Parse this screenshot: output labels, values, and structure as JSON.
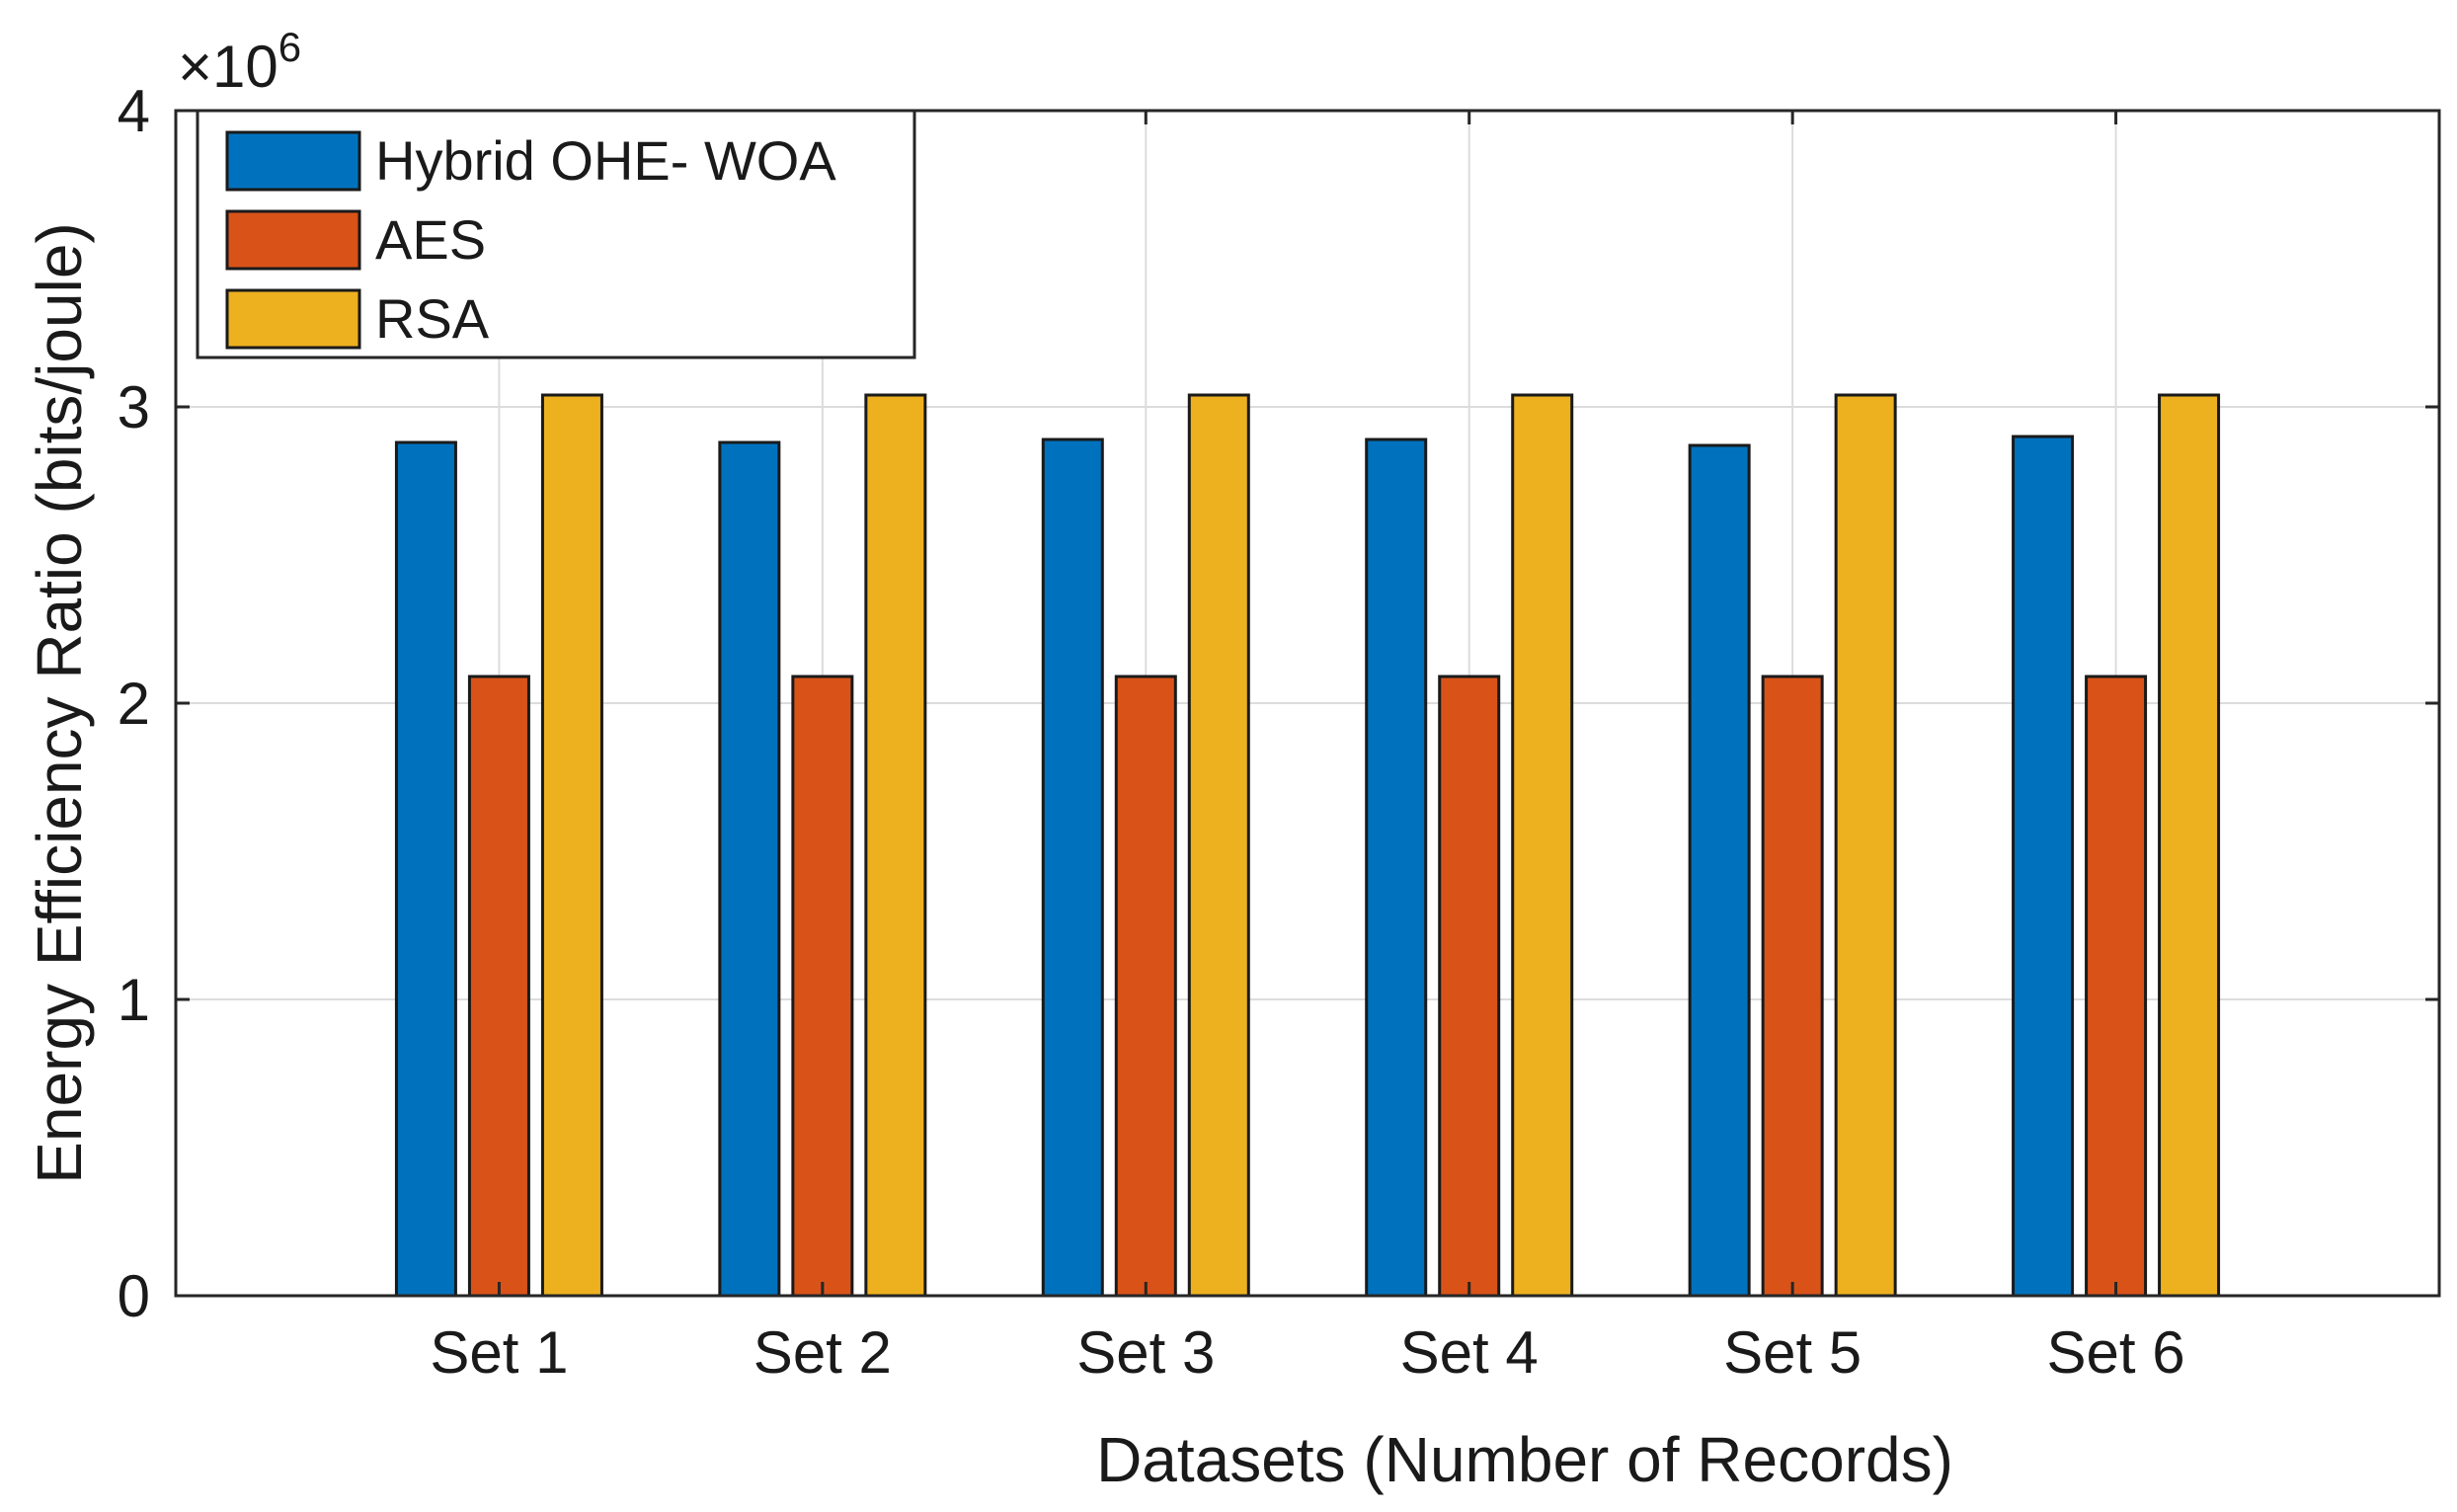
{
  "chart_data": {
    "type": "bar",
    "title": "",
    "xlabel": "Datasets (Number of Records)",
    "ylabel": "Energy Efficiency Ratio (bits/joule)",
    "y_exponent_base": "×10",
    "y_exponent_power": "6",
    "y_multiplier": 1000000,
    "ylim": [
      0,
      4
    ],
    "yticks": [
      "0",
      "1",
      "2",
      "3",
      "4"
    ],
    "ytick_values": [
      0,
      1,
      2,
      3,
      4
    ],
    "grid": true,
    "legend_position": "top-left",
    "categories": [
      "Set 1",
      "Set 2",
      "Set 3",
      "Set 4",
      "Set 5",
      "Set 6"
    ],
    "series": [
      {
        "name": "Hybrid OHE- WOA",
        "color": "#0072BD",
        "values": [
          2.88,
          2.88,
          2.89,
          2.89,
          2.87,
          2.9
        ]
      },
      {
        "name": "AES",
        "color": "#D95319",
        "values": [
          2.09,
          2.09,
          2.09,
          2.09,
          2.09,
          2.09
        ]
      },
      {
        "name": "RSA",
        "color": "#EDB120",
        "values": [
          3.04,
          3.04,
          3.04,
          3.04,
          3.04,
          3.04
        ]
      }
    ]
  }
}
